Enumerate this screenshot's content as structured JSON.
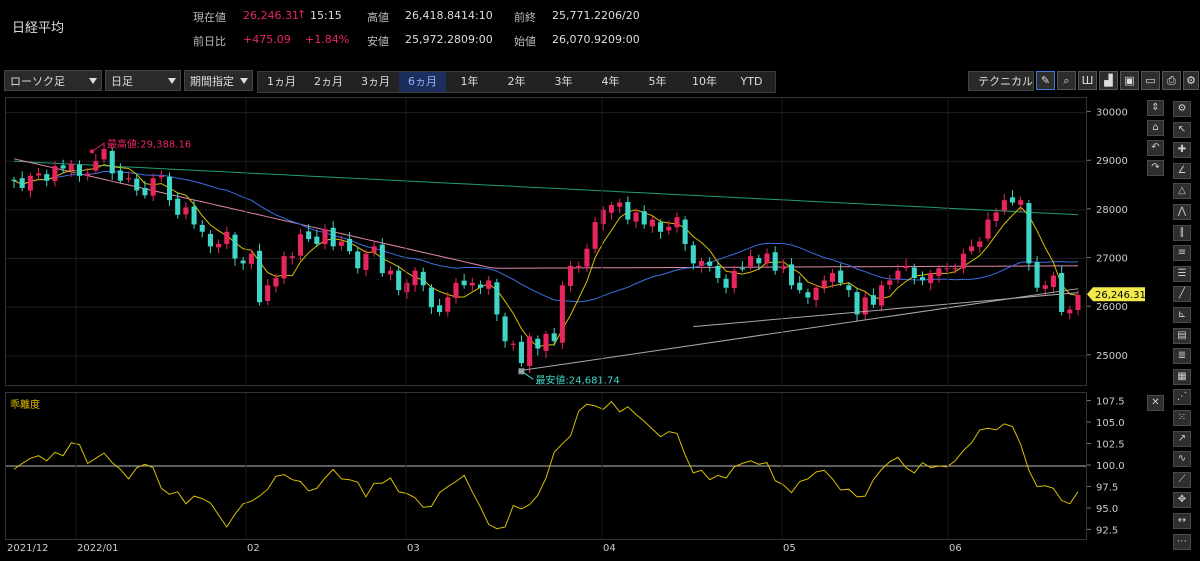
{
  "header": {
    "title": "日経平均",
    "current_label": "現在値",
    "current_value": "26,246.31",
    "current_arrow": "↑",
    "current_time": "15:15",
    "change_label": "前日比",
    "change_value": "+475.09",
    "change_pct": "+1.84%",
    "high_label": "高値",
    "high_value": "26,418.84",
    "high_time": "14:10",
    "low_label": "安値",
    "low_value": "25,972.28",
    "low_time": "09:00",
    "prev_label": "前終",
    "prev_value": "25,771.22",
    "prev_date": "06/20",
    "open_label": "始値",
    "open_value": "26,070.92",
    "open_time": "09:00"
  },
  "toolbar": {
    "chart_type": "ローソク足",
    "interval": "日足",
    "range_mode": "期間指定",
    "periods": [
      "1ヵ月",
      "2ヵ月",
      "3ヵ月",
      "6ヵ月",
      "1年",
      "2年",
      "3年",
      "4年",
      "5年",
      "10年",
      "YTD"
    ],
    "selected_period": "6ヵ月",
    "technical_label": "テクニカル",
    "icons": [
      "pen-icon",
      "zoom-icon",
      "split-icon",
      "bar-chart-icon",
      "save-icon",
      "folder-icon",
      "print-icon",
      "settings-icon"
    ]
  },
  "colors": {
    "up": "#e8265e",
    "down": "#3fd6c8",
    "ma_short": "#d8c000",
    "ma_mid": "#3b6fe0",
    "ma_long": "#e08aa8",
    "ma_longest": "#1f9e74",
    "trendline": "#aaaaaa",
    "price_tag": "#f2e94a"
  },
  "annotations": {
    "max_label": "最高値:29,388.16",
    "min_label": "最安値:24,681.74",
    "price_tag": "26,246.31",
    "sub_title": "乖離度"
  },
  "axes": {
    "price_ticks": [
      "30000",
      "29000",
      "28000",
      "27000",
      "26000",
      "25000"
    ],
    "dev_ticks": [
      "107.5",
      "105.0",
      "102.5",
      "100.0",
      "97.5",
      "95.0",
      "92.5"
    ],
    "dates": [
      "2021/12",
      "2022/01",
      "02",
      "03",
      "04",
      "05",
      "06"
    ]
  },
  "chart_data": [
    {
      "type": "line",
      "title": "",
      "xlabel": "",
      "ylabel": "",
      "ylim": [
        24400,
        30300
      ],
      "series": [
        {
          "values": [
            28600,
            28450,
            28700,
            28750,
            28600,
            28900,
            28850,
            28950,
            28700,
            28750,
            29000,
            29250,
            28750,
            28600,
            28650,
            28400,
            28300,
            28650,
            28700,
            28200,
            27900,
            28050,
            27700,
            27550,
            27250,
            27300,
            27550,
            27000,
            26900,
            27100,
            26100,
            26450,
            26600,
            27050,
            27050,
            27500,
            27400,
            27300,
            27600,
            27250,
            27350,
            27150,
            26800,
            27100,
            27250,
            26700,
            26750,
            26350,
            26500,
            26750,
            26450,
            26000,
            25900,
            26200,
            26500,
            26450,
            26500,
            26400,
            26550,
            25850,
            25300,
            25250,
            24850,
            25400,
            25150,
            25450,
            25300,
            26450,
            26850,
            26850,
            27200,
            27750,
            28000,
            28100,
            28150,
            27800,
            27950,
            27700,
            27800,
            27550,
            27650,
            27850,
            27300,
            26900,
            26950,
            26850,
            26600,
            26400,
            26750,
            26800,
            27050,
            26900,
            27100,
            26750,
            26850,
            26450,
            26350,
            26200,
            26400,
            26550,
            26700,
            26500,
            26350,
            25850,
            26200,
            26050,
            26450,
            26550,
            26750,
            26850,
            26600,
            26550,
            26700,
            26800,
            26800,
            26800,
            27100,
            27250,
            27350,
            27800,
            27950,
            28200,
            28150,
            28200,
            26900,
            26400,
            26450,
            26650,
            25900,
            25950,
            26250
          ]
        }
      ]
    },
    {
      "type": "line",
      "title": "",
      "xlabel": "",
      "ylabel": "",
      "ylim": [
        91.5,
        108.5
      ],
      "series": [
        {
          "values": [
            99.6,
            100.3,
            100.9,
            101.2,
            100.6,
            101.6,
            101.2,
            102.7,
            102.5,
            100.3,
            100.9,
            101.5,
            100.4,
            99.6,
            98.5,
            99.8,
            100.2,
            99.8,
            97.4,
            96.7,
            97.0,
            95.6,
            96.5,
            96.2,
            95.7,
            94.3,
            92.9,
            94.4,
            95.6,
            95.9,
            96.5,
            97.3,
            98.8,
            99.0,
            98.4,
            98.2,
            97.1,
            97.4,
            98.6,
            99.6,
            98.5,
            98.4,
            98.1,
            96.4,
            98.0,
            98.0,
            98.6,
            97.0,
            96.8,
            96.3,
            95.2,
            95.3,
            96.9,
            97.6,
            98.2,
            98.9,
            97.0,
            95.2,
            93.2,
            92.7,
            92.9,
            95.4,
            95.0,
            95.5,
            96.6,
            98.6,
            101.6,
            102.6,
            103.5,
            106.4,
            107.2,
            107.0,
            106.6,
            107.5,
            106.3,
            106.9,
            106.0,
            105.2,
            104.3,
            103.4,
            104.0,
            103.8,
            101.3,
            99.2,
            99.5,
            98.4,
            98.9,
            98.6,
            99.9,
            100.3,
            100.6,
            100.2,
            100.4,
            98.3,
            97.8,
            96.9,
            98.2,
            98.5,
            99.3,
            99.5,
            98.5,
            97.2,
            97.3,
            96.4,
            96.5,
            98.4,
            99.6,
            100.5,
            101.0,
            99.8,
            99.2,
            100.4,
            99.8,
            100.0,
            99.9,
            100.6,
            101.8,
            102.7,
            104.2,
            104.4,
            104.2,
            104.9,
            104.6,
            102.5,
            99.5,
            97.6,
            97.7,
            97.4,
            96.0,
            95.6,
            97.0
          ]
        }
      ]
    }
  ]
}
